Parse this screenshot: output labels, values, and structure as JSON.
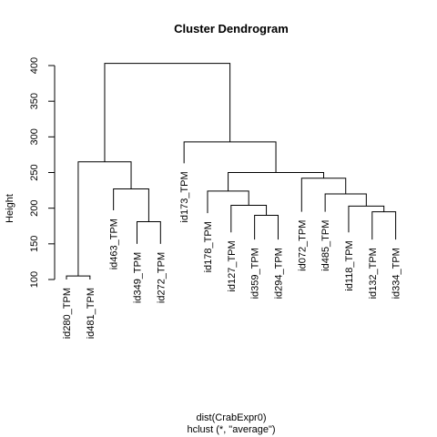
{
  "chart_data": {
    "type": "dendrogram",
    "title": "Cluster Dendrogram",
    "ylabel": "Height",
    "xlabel_line1": "dist(CrabExpr0)",
    "xlabel_line2": "hclust (*, \"average\")",
    "ylim": [
      100,
      400
    ],
    "yticks": [
      100,
      150,
      200,
      250,
      300,
      350,
      400
    ],
    "leaves": [
      {
        "label": "id280_TPM",
        "height": 100
      },
      {
        "label": "id481_TPM",
        "height": 100
      },
      {
        "label": "id463_TPM",
        "height": 197
      },
      {
        "label": "id349_TPM",
        "height": 150
      },
      {
        "label": "id272_TPM",
        "height": 150
      },
      {
        "label": "id173_TPM",
        "height": 263
      },
      {
        "label": "id178_TPM",
        "height": 193
      },
      {
        "label": "id127_TPM",
        "height": 166
      },
      {
        "label": "id359_TPM",
        "height": 156
      },
      {
        "label": "id294_TPM",
        "height": 156
      },
      {
        "label": "id072_TPM",
        "height": 195
      },
      {
        "label": "id485_TPM",
        "height": 195
      },
      {
        "label": "id118_TPM",
        "height": 166
      },
      {
        "label": "id132_TPM",
        "height": 156
      },
      {
        "label": "id334_TPM",
        "height": 156
      }
    ],
    "merges": [
      {
        "a": "L0",
        "b": "L1",
        "height": 105
      },
      {
        "a": "L3",
        "b": "L4",
        "height": 181
      },
      {
        "a": "L2",
        "b": "M1",
        "height": 227
      },
      {
        "a": "M0",
        "b": "M2",
        "height": 265
      },
      {
        "a": "L8",
        "b": "L9",
        "height": 190
      },
      {
        "a": "L7",
        "b": "M4",
        "height": 204
      },
      {
        "a": "L6",
        "b": "M5",
        "height": 224
      },
      {
        "a": "L13",
        "b": "L14",
        "height": 195
      },
      {
        "a": "L12",
        "b": "M7",
        "height": 203
      },
      {
        "a": "L11",
        "b": "M8",
        "height": 220
      },
      {
        "a": "L10",
        "b": "M9",
        "height": 242
      },
      {
        "a": "M6",
        "b": "M10",
        "height": 250
      },
      {
        "a": "L5",
        "b": "M11",
        "height": 293
      },
      {
        "a": "M3",
        "b": "M12",
        "height": 403
      }
    ]
  }
}
